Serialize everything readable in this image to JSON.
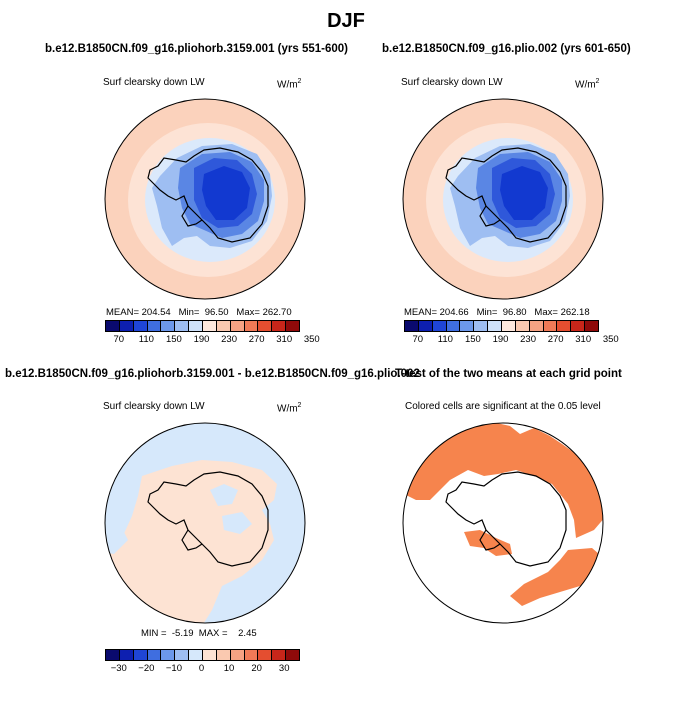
{
  "figure": {
    "title": "DJF"
  },
  "panels": [
    {
      "title": "b.e12.B1850CN.f09_g16.pliohorb.3159.001 (yrs 551-600)",
      "variable": "Surf clearsky down LW",
      "units": "W/m",
      "units_sup": "2",
      "stats": "MEAN= 204.54   Min=  96.50   Max= 262.70"
    },
    {
      "title": "b.e12.B1850CN.f09_g16.plio.002 (yrs 601-650)",
      "variable": "Surf clearsky down LW",
      "units": "W/m",
      "units_sup": "2",
      "stats": "MEAN= 204.66   Min=  96.80   Max= 262.18"
    },
    {
      "title": "b.e12.B1850CN.f09_g16.pliohorb.3159.001 - b.e12.B1850CN.f09_g16.plio.002",
      "variable": "Surf clearsky down LW",
      "units": "W/m",
      "units_sup": "2",
      "stats": "MIN =  -5.19  MAX =    2.45"
    },
    {
      "title": "T-test of the two means at each grid point",
      "variable": "Colored cells are significant at the 0.05 level"
    }
  ],
  "colorbar_abs": {
    "ticks": [
      "70",
      "110",
      "150",
      "190",
      "230",
      "270",
      "310",
      "350"
    ],
    "colors": [
      "#0a0a6e",
      "#0d1fb0",
      "#1f45d6",
      "#3f6ee0",
      "#6c98ea",
      "#9ebeF2",
      "#cfe2fa",
      "#fde8dd",
      "#fac9b0",
      "#f6a283",
      "#f07a57",
      "#e44e30",
      "#c8261a",
      "#8f0a0a"
    ]
  },
  "colorbar_diff": {
    "ticks": [
      "−30",
      "−20",
      "−10",
      "0",
      "10",
      "20",
      "30"
    ],
    "colors": [
      "#0a0a6e",
      "#0d1fb0",
      "#1f45d6",
      "#3f6ee0",
      "#6c98ea",
      "#9ebef2",
      "#d6e8fb",
      "#fde3d3",
      "#fac9b0",
      "#f6a283",
      "#f07a57",
      "#e44e30",
      "#c8261a",
      "#8f0a0a"
    ]
  },
  "map_colors": {
    "outer_ring": "#fbd2bc",
    "mid_ring": "#fde3d5",
    "ice_shelf": "#dbe9fb",
    "interior_1": "#9ebef2",
    "interior_2": "#5a86e4",
    "interior_3": "#2f58da",
    "interior_core": "#1239d0",
    "diff_pos": "#fde3d3",
    "diff_neg": "#d6e8fb",
    "signif": "#f6844d"
  }
}
